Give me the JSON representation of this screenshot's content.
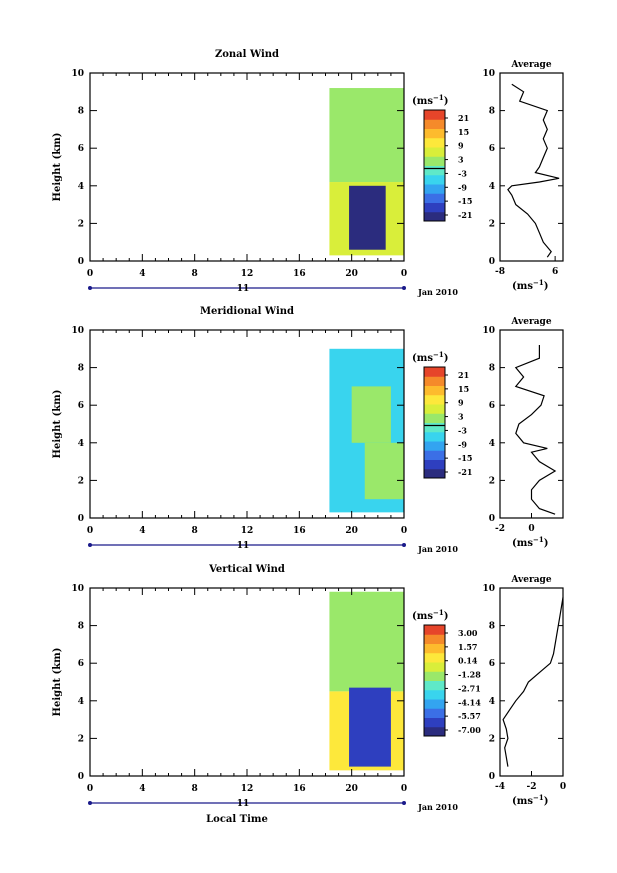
{
  "figure": {
    "date_label": "Jan 2010",
    "day_label": "11",
    "time_ticks": [
      "0",
      "4",
      "8",
      "12",
      "16",
      "20",
      "0"
    ],
    "xlabel": "Local Time",
    "height_ticks": [
      "0",
      "2",
      "4",
      "6",
      "8",
      "10"
    ],
    "ylabel": "Height (km)",
    "cbar_unit_base": "(ms",
    "cbar_unit_exp": "−1",
    "avg_title": "Average",
    "avg_unit_base": "(ms",
    "avg_unit_exp": "−1"
  },
  "colors": {
    "scale": [
      "#2b2c7e",
      "#2e3fbf",
      "#3b6fe6",
      "#33a4f0",
      "#39d4ee",
      "#5fe9c8",
      "#9ae86a",
      "#d9ee3a",
      "#fde83b",
      "#fdbb2d",
      "#f58a2a",
      "#e6452a"
    ],
    "contour": "#000000",
    "line": "#000000"
  },
  "chart_data": [
    {
      "type": "heatmap",
      "title": "Zonal Wind",
      "xlabel": "",
      "ylabel": "Height (km)",
      "xlim": [
        0,
        24
      ],
      "ylim": [
        0,
        10
      ],
      "colorbar": {
        "labels": [
          "21",
          "15",
          "9",
          "3",
          "-3",
          "-9",
          "-15",
          "-21"
        ],
        "range": [
          -24,
          24
        ]
      },
      "cells": [
        {
          "x0": 18.3,
          "x1": 24,
          "y0": 4.2,
          "y1": 9.2,
          "value": 0
        },
        {
          "x0": 18.3,
          "x1": 24,
          "y0": 0.3,
          "y1": 4.2,
          "value": 6
        },
        {
          "x0": 19.8,
          "x1": 22.6,
          "y0": 0.6,
          "y1": 4.0,
          "value": -22
        }
      ],
      "profile": {
        "xlim": [
          -8,
          8
        ],
        "ylim": [
          0,
          10
        ],
        "xticks": [
          "-8",
          "6"
        ],
        "yticks": [
          "0",
          "2",
          "4",
          "6",
          "8",
          "10"
        ],
        "x": [
          4,
          5,
          3,
          2,
          1,
          -1,
          -4,
          -5,
          -6,
          -5,
          2,
          7,
          1,
          2,
          3,
          4,
          3,
          4,
          3,
          4,
          -3,
          -2,
          -5
        ],
        "y": [
          0.2,
          0.5,
          1.0,
          1.5,
          2.0,
          2.5,
          3.0,
          3.5,
          3.8,
          4.0,
          4.2,
          4.4,
          4.7,
          5.0,
          5.5,
          6.0,
          6.5,
          7.0,
          7.5,
          8.0,
          8.5,
          9.0,
          9.4
        ]
      }
    },
    {
      "type": "heatmap",
      "title": "Meridional Wind",
      "xlabel": "",
      "ylabel": "Height (km)",
      "xlim": [
        0,
        24
      ],
      "ylim": [
        0,
        10
      ],
      "colorbar": {
        "labels": [
          "21",
          "15",
          "9",
          "3",
          "-3",
          "-9",
          "-15",
          "-21"
        ],
        "range": [
          -24,
          24
        ]
      },
      "cells": [
        {
          "x0": 18.3,
          "x1": 24,
          "y0": 0.3,
          "y1": 9.0,
          "value": -5
        },
        {
          "x0": 20.0,
          "x1": 23.0,
          "y0": 4.0,
          "y1": 7.0,
          "value": 2
        },
        {
          "x0": 21.0,
          "x1": 24.0,
          "y0": 1.0,
          "y1": 4.0,
          "value": 3
        }
      ],
      "profile": {
        "xlim": [
          -2,
          2
        ],
        "ylim": [
          0,
          10
        ],
        "xticks": [
          "-2",
          "0"
        ],
        "yticks": [
          "0",
          "2",
          "4",
          "6",
          "8",
          "10"
        ],
        "x": [
          1.5,
          0.5,
          0,
          0,
          0.5,
          1.5,
          0.5,
          0,
          1.0,
          -0.5,
          -1.0,
          -0.8,
          0,
          0.6,
          0.8,
          -1.0,
          -0.5,
          -1.0,
          0.5,
          0.5
        ],
        "y": [
          0.2,
          0.5,
          1.0,
          1.5,
          2.0,
          2.5,
          3.0,
          3.5,
          3.7,
          4.0,
          4.5,
          5.0,
          5.5,
          6.0,
          6.5,
          7.0,
          7.5,
          8.0,
          8.5,
          9.2
        ]
      }
    },
    {
      "type": "heatmap",
      "title": "Vertical Wind",
      "xlabel": "Local Time",
      "ylabel": "Height (km)",
      "xlim": [
        0,
        24
      ],
      "ylim": [
        0,
        10
      ],
      "colorbar": {
        "labels": [
          "3.00",
          "1.57",
          "0.14",
          "-1.28",
          "-2.71",
          "-4.14",
          "-5.57",
          "-7.00"
        ],
        "range": [
          -7.7,
          3.7
        ]
      },
      "cells": [
        {
          "x0": 18.3,
          "x1": 24,
          "y0": 4.5,
          "y1": 9.8,
          "value": -1.5
        },
        {
          "x0": 18.3,
          "x1": 24,
          "y0": 0.3,
          "y1": 4.5,
          "value": 0.5
        },
        {
          "x0": 19.8,
          "x1": 23.0,
          "y0": 0.5,
          "y1": 4.7,
          "value": -6.5
        }
      ],
      "profile": {
        "xlim": [
          -4,
          0
        ],
        "ylim": [
          0,
          10
        ],
        "xticks": [
          "-4",
          "-2",
          "0"
        ],
        "yticks": [
          "0",
          "2",
          "4",
          "6",
          "8",
          "10"
        ],
        "x": [
          -3.5,
          -3.6,
          -3.7,
          -3.5,
          -3.6,
          -3.8,
          -3.4,
          -3.0,
          -2.5,
          -2.2,
          -1.5,
          -0.8,
          -0.6,
          -0.4,
          -0.2,
          0
        ],
        "y": [
          0.5,
          1.0,
          1.5,
          2.0,
          2.5,
          3.0,
          3.5,
          4.0,
          4.5,
          5.0,
          5.5,
          6.0,
          6.5,
          7.5,
          8.5,
          9.5
        ]
      }
    }
  ]
}
